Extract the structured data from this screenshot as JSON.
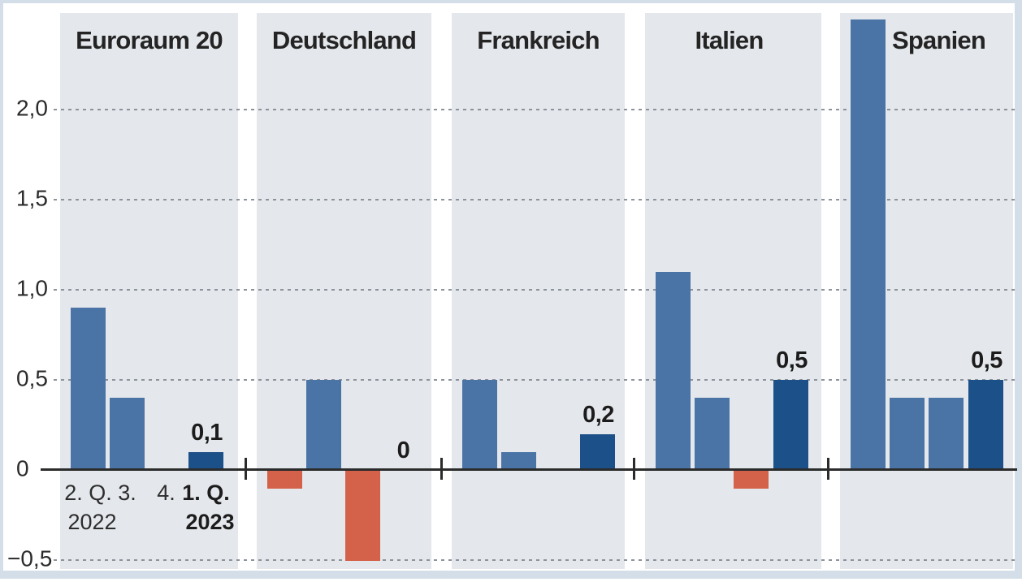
{
  "chart_data": {
    "type": "bar",
    "description_visible_text_only": "Small-multiple bar chart of quarterly values for five regions",
    "y_axis": {
      "ticks": [
        {
          "label": "2,0",
          "value": 2.0
        },
        {
          "label": "1,5",
          "value": 1.5
        },
        {
          "label": "1,0",
          "value": 1.0
        },
        {
          "label": "0,5",
          "value": 0.5
        },
        {
          "label": "0",
          "value": 0.0
        },
        {
          "label": "−0,5",
          "value": -0.5
        }
      ],
      "range": [
        -0.55,
        2.55
      ],
      "grid": "dashed horizontal lines at labeled ticks except zero"
    },
    "categories": [
      "2. Q. 2022",
      "3. Q. 2022",
      "4. Q. 2022",
      "1. Q. 2023"
    ],
    "x_labels": [
      {
        "line1": "2. Q.",
        "line2": "2022",
        "bold": false
      },
      {
        "line1": "3.",
        "line2": "",
        "bold": false
      },
      {
        "line1": "4.",
        "line2": "",
        "bold": false
      },
      {
        "line1": "1. Q.",
        "line2": "2023",
        "bold": true
      }
    ],
    "panels": [
      {
        "title": "Euroraum 20",
        "values": [
          0.9,
          0.4,
          0.0,
          0.1
        ],
        "value_label": "0,1"
      },
      {
        "title": "Deutschland",
        "values": [
          -0.1,
          0.5,
          -0.5,
          0.0
        ],
        "value_label": "0"
      },
      {
        "title": "Frankreich",
        "values": [
          0.5,
          0.1,
          0.0,
          0.2
        ],
        "value_label": "0,2"
      },
      {
        "title": "Italien",
        "values": [
          1.1,
          0.4,
          -0.1,
          0.5
        ],
        "value_label": "0,5"
      },
      {
        "title": "Spanien",
        "values": [
          2.5,
          0.4,
          0.4,
          0.5
        ],
        "value_label": "0,5"
      }
    ],
    "legend_position": "none",
    "colors": {
      "bar_blue": "#4a74a6",
      "bar_dark_blue": "#1c5088",
      "bar_red": "#d4614a",
      "panel_background": "#e4e7eb",
      "grid": "#8d939b",
      "axis": "#2b2b2b",
      "text": "#242424",
      "frame_border": "#d4dee8",
      "background": "#ffffff"
    }
  }
}
